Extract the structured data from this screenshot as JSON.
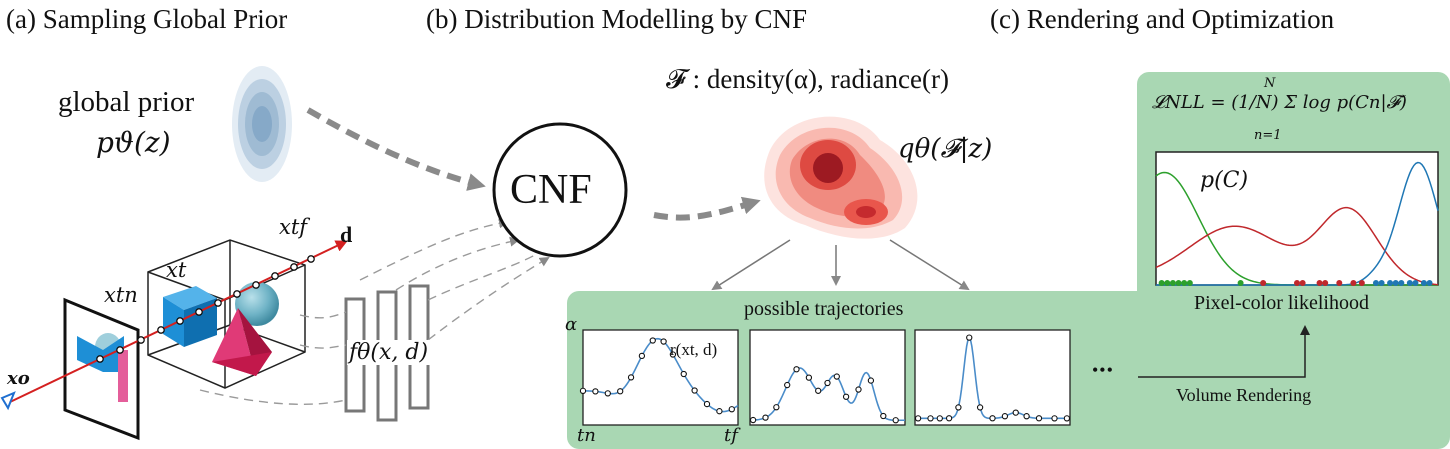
{
  "panels": {
    "a": "(a) Sampling Global Prior",
    "b": "(b) Distribution Modelling by CNF",
    "c": "(c) Rendering and Optimization"
  },
  "prior": {
    "label": "global prior",
    "symbol": "pϑ(z)"
  },
  "cnf": {
    "label": "CNF"
  },
  "field": {
    "equation": "𝓕 : density(α), radiance(r)",
    "posterior": "qθ(𝓕|z)"
  },
  "network": {
    "label": "fθ(x, d)"
  },
  "ray": {
    "origin": "xo",
    "direction": "d",
    "sample_near": "xtn",
    "sample": "xt",
    "sample_far": "xtf"
  },
  "trajectories": {
    "title": "possible trajectories",
    "y_axis": "α",
    "x_start": "tn",
    "x_end": "tf",
    "curve_label": "r(xt, d)",
    "ellipsis": "•••"
  },
  "likelihood": {
    "loss": "𝓛NLL = (1/N) Σ log p(Cn|𝓕)",
    "sum_upper": "N",
    "sum_lower": "n=1",
    "density_label": "p(C)",
    "caption": "Pixel-color likelihood",
    "arrow_label": "Volume Rendering"
  },
  "colors": {
    "green_panel": "#a9d7b3",
    "green_border": "#7fbf8f",
    "blue_curve": "#1f77b4",
    "red_curve": "#c0282c",
    "green_curve": "#2ca02c",
    "cube_blue": "#1e8fd6",
    "pyramid_red": "#c2184b",
    "sphere_teal": "#6fb3c6",
    "ray_red": "#d42020"
  }
}
